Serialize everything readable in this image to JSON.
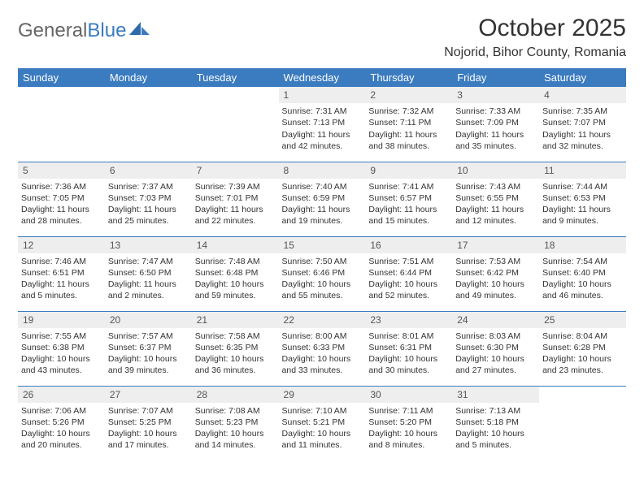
{
  "brand": {
    "part1": "General",
    "part2": "Blue"
  },
  "colors": {
    "header_bg": "#3b7bbf",
    "header_text": "#ffffff",
    "daynum_bg": "#eeeeee",
    "cell_border": "#3b7bbf",
    "text": "#333333",
    "background": "#ffffff"
  },
  "title": "October 2025",
  "location": "Nojorid, Bihor County, Romania",
  "weekdays": [
    "Sunday",
    "Monday",
    "Tuesday",
    "Wednesday",
    "Thursday",
    "Friday",
    "Saturday"
  ],
  "cells": [
    {
      "day": "",
      "sunrise": "",
      "sunset": "",
      "daylight1": "",
      "daylight2": "",
      "empty": true
    },
    {
      "day": "",
      "sunrise": "",
      "sunset": "",
      "daylight1": "",
      "daylight2": "",
      "empty": true
    },
    {
      "day": "",
      "sunrise": "",
      "sunset": "",
      "daylight1": "",
      "daylight2": "",
      "empty": true
    },
    {
      "day": "1",
      "sunrise": "Sunrise: 7:31 AM",
      "sunset": "Sunset: 7:13 PM",
      "daylight1": "Daylight: 11 hours",
      "daylight2": "and 42 minutes."
    },
    {
      "day": "2",
      "sunrise": "Sunrise: 7:32 AM",
      "sunset": "Sunset: 7:11 PM",
      "daylight1": "Daylight: 11 hours",
      "daylight2": "and 38 minutes."
    },
    {
      "day": "3",
      "sunrise": "Sunrise: 7:33 AM",
      "sunset": "Sunset: 7:09 PM",
      "daylight1": "Daylight: 11 hours",
      "daylight2": "and 35 minutes."
    },
    {
      "day": "4",
      "sunrise": "Sunrise: 7:35 AM",
      "sunset": "Sunset: 7:07 PM",
      "daylight1": "Daylight: 11 hours",
      "daylight2": "and 32 minutes."
    },
    {
      "day": "5",
      "sunrise": "Sunrise: 7:36 AM",
      "sunset": "Sunset: 7:05 PM",
      "daylight1": "Daylight: 11 hours",
      "daylight2": "and 28 minutes."
    },
    {
      "day": "6",
      "sunrise": "Sunrise: 7:37 AM",
      "sunset": "Sunset: 7:03 PM",
      "daylight1": "Daylight: 11 hours",
      "daylight2": "and 25 minutes."
    },
    {
      "day": "7",
      "sunrise": "Sunrise: 7:39 AM",
      "sunset": "Sunset: 7:01 PM",
      "daylight1": "Daylight: 11 hours",
      "daylight2": "and 22 minutes."
    },
    {
      "day": "8",
      "sunrise": "Sunrise: 7:40 AM",
      "sunset": "Sunset: 6:59 PM",
      "daylight1": "Daylight: 11 hours",
      "daylight2": "and 19 minutes."
    },
    {
      "day": "9",
      "sunrise": "Sunrise: 7:41 AM",
      "sunset": "Sunset: 6:57 PM",
      "daylight1": "Daylight: 11 hours",
      "daylight2": "and 15 minutes."
    },
    {
      "day": "10",
      "sunrise": "Sunrise: 7:43 AM",
      "sunset": "Sunset: 6:55 PM",
      "daylight1": "Daylight: 11 hours",
      "daylight2": "and 12 minutes."
    },
    {
      "day": "11",
      "sunrise": "Sunrise: 7:44 AM",
      "sunset": "Sunset: 6:53 PM",
      "daylight1": "Daylight: 11 hours",
      "daylight2": "and 9 minutes."
    },
    {
      "day": "12",
      "sunrise": "Sunrise: 7:46 AM",
      "sunset": "Sunset: 6:51 PM",
      "daylight1": "Daylight: 11 hours",
      "daylight2": "and 5 minutes."
    },
    {
      "day": "13",
      "sunrise": "Sunrise: 7:47 AM",
      "sunset": "Sunset: 6:50 PM",
      "daylight1": "Daylight: 11 hours",
      "daylight2": "and 2 minutes."
    },
    {
      "day": "14",
      "sunrise": "Sunrise: 7:48 AM",
      "sunset": "Sunset: 6:48 PM",
      "daylight1": "Daylight: 10 hours",
      "daylight2": "and 59 minutes."
    },
    {
      "day": "15",
      "sunrise": "Sunrise: 7:50 AM",
      "sunset": "Sunset: 6:46 PM",
      "daylight1": "Daylight: 10 hours",
      "daylight2": "and 55 minutes."
    },
    {
      "day": "16",
      "sunrise": "Sunrise: 7:51 AM",
      "sunset": "Sunset: 6:44 PM",
      "daylight1": "Daylight: 10 hours",
      "daylight2": "and 52 minutes."
    },
    {
      "day": "17",
      "sunrise": "Sunrise: 7:53 AM",
      "sunset": "Sunset: 6:42 PM",
      "daylight1": "Daylight: 10 hours",
      "daylight2": "and 49 minutes."
    },
    {
      "day": "18",
      "sunrise": "Sunrise: 7:54 AM",
      "sunset": "Sunset: 6:40 PM",
      "daylight1": "Daylight: 10 hours",
      "daylight2": "and 46 minutes."
    },
    {
      "day": "19",
      "sunrise": "Sunrise: 7:55 AM",
      "sunset": "Sunset: 6:38 PM",
      "daylight1": "Daylight: 10 hours",
      "daylight2": "and 43 minutes."
    },
    {
      "day": "20",
      "sunrise": "Sunrise: 7:57 AM",
      "sunset": "Sunset: 6:37 PM",
      "daylight1": "Daylight: 10 hours",
      "daylight2": "and 39 minutes."
    },
    {
      "day": "21",
      "sunrise": "Sunrise: 7:58 AM",
      "sunset": "Sunset: 6:35 PM",
      "daylight1": "Daylight: 10 hours",
      "daylight2": "and 36 minutes."
    },
    {
      "day": "22",
      "sunrise": "Sunrise: 8:00 AM",
      "sunset": "Sunset: 6:33 PM",
      "daylight1": "Daylight: 10 hours",
      "daylight2": "and 33 minutes."
    },
    {
      "day": "23",
      "sunrise": "Sunrise: 8:01 AM",
      "sunset": "Sunset: 6:31 PM",
      "daylight1": "Daylight: 10 hours",
      "daylight2": "and 30 minutes."
    },
    {
      "day": "24",
      "sunrise": "Sunrise: 8:03 AM",
      "sunset": "Sunset: 6:30 PM",
      "daylight1": "Daylight: 10 hours",
      "daylight2": "and 27 minutes."
    },
    {
      "day": "25",
      "sunrise": "Sunrise: 8:04 AM",
      "sunset": "Sunset: 6:28 PM",
      "daylight1": "Daylight: 10 hours",
      "daylight2": "and 23 minutes."
    },
    {
      "day": "26",
      "sunrise": "Sunrise: 7:06 AM",
      "sunset": "Sunset: 5:26 PM",
      "daylight1": "Daylight: 10 hours",
      "daylight2": "and 20 minutes."
    },
    {
      "day": "27",
      "sunrise": "Sunrise: 7:07 AM",
      "sunset": "Sunset: 5:25 PM",
      "daylight1": "Daylight: 10 hours",
      "daylight2": "and 17 minutes."
    },
    {
      "day": "28",
      "sunrise": "Sunrise: 7:08 AM",
      "sunset": "Sunset: 5:23 PM",
      "daylight1": "Daylight: 10 hours",
      "daylight2": "and 14 minutes."
    },
    {
      "day": "29",
      "sunrise": "Sunrise: 7:10 AM",
      "sunset": "Sunset: 5:21 PM",
      "daylight1": "Daylight: 10 hours",
      "daylight2": "and 11 minutes."
    },
    {
      "day": "30",
      "sunrise": "Sunrise: 7:11 AM",
      "sunset": "Sunset: 5:20 PM",
      "daylight1": "Daylight: 10 hours",
      "daylight2": "and 8 minutes."
    },
    {
      "day": "31",
      "sunrise": "Sunrise: 7:13 AM",
      "sunset": "Sunset: 5:18 PM",
      "daylight1": "Daylight: 10 hours",
      "daylight2": "and 5 minutes."
    },
    {
      "day": "",
      "sunrise": "",
      "sunset": "",
      "daylight1": "",
      "daylight2": "",
      "empty": true
    }
  ]
}
